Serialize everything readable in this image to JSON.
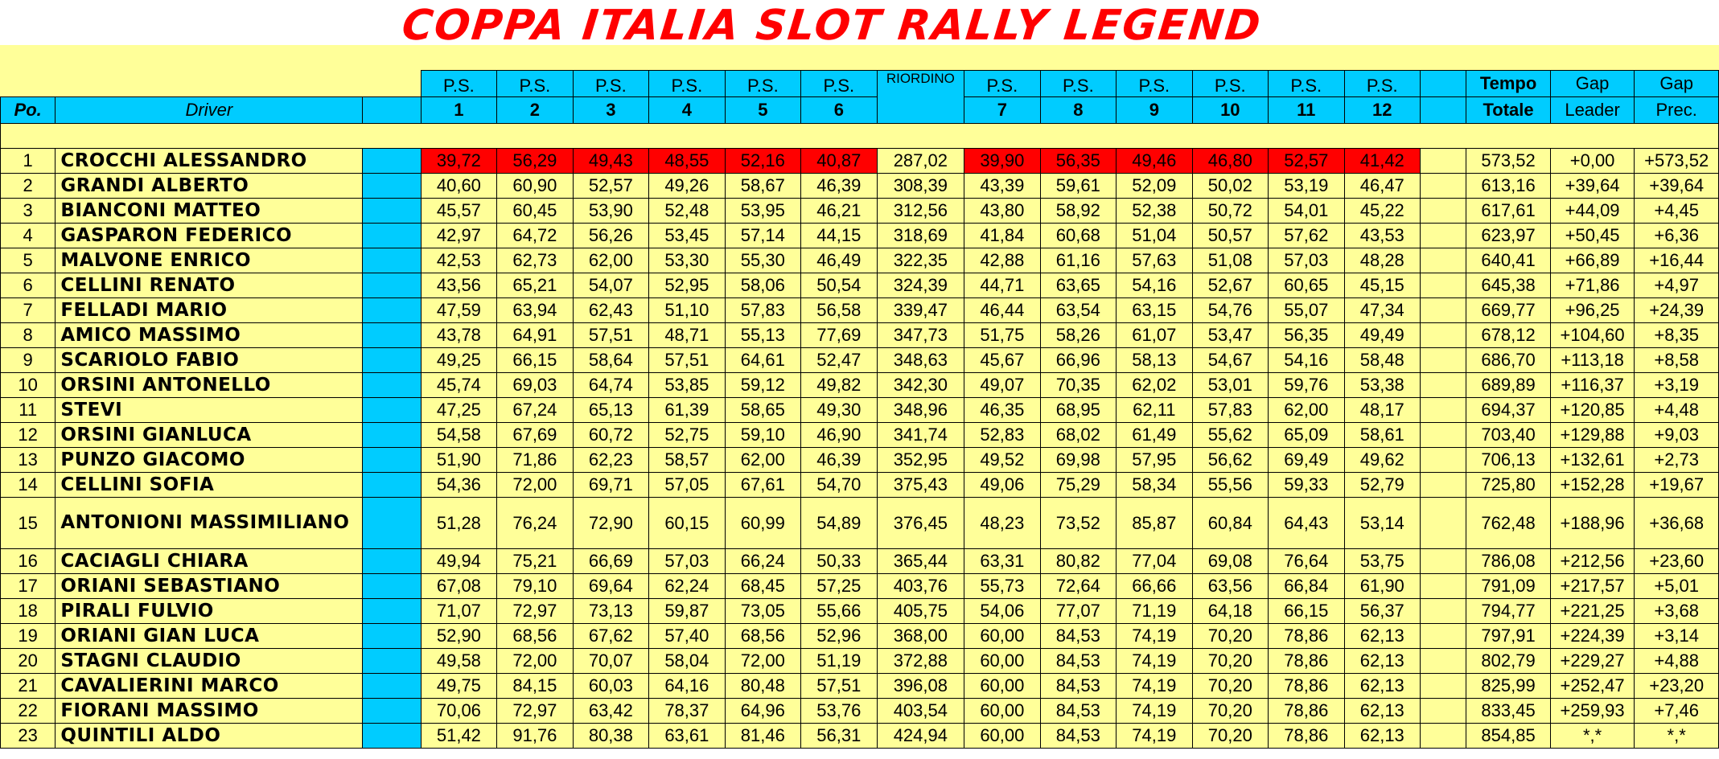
{
  "title": "COPPA ITALIA SLOT RALLY LEGEND",
  "colors": {
    "header_cyan": "#00ccff",
    "table_bg": "#ffff99",
    "best_red": "#ff0000",
    "title_red": "#ff0000"
  },
  "header": {
    "pos_label": "Po.",
    "driver_label": "Driver",
    "stages": [
      {
        "top": "P.S.",
        "num": "1"
      },
      {
        "top": "P.S.",
        "num": "2"
      },
      {
        "top": "P.S.",
        "num": "3"
      },
      {
        "top": "P.S.",
        "num": "4"
      },
      {
        "top": "P.S.",
        "num": "5"
      },
      {
        "top": "P.S.",
        "num": "6"
      },
      {
        "top": "RIORDINO",
        "num": ""
      },
      {
        "top": "P.S.",
        "num": "7"
      },
      {
        "top": "P.S.",
        "num": "8"
      },
      {
        "top": "P.S.",
        "num": "9"
      },
      {
        "top": "P.S.",
        "num": "10"
      },
      {
        "top": "P.S.",
        "num": "11"
      },
      {
        "top": "P.S.",
        "num": "12"
      }
    ],
    "tempo_top": "Tempo",
    "tempo_bottom": "Totale",
    "gap_leader_top": "Gap",
    "gap_leader_bottom": "Leader",
    "gap_prec_top": "Gap",
    "gap_prec_bottom": "Prec."
  },
  "rows": [
    {
      "pos": "1",
      "driver": "CROCCHI ALESSANDRO",
      "times": [
        "39,72",
        "56,29",
        "49,43",
        "48,55",
        "52,16",
        "40,87",
        "287,02",
        "39,90",
        "56,35",
        "49,46",
        "46,80",
        "52,57",
        "41,42"
      ],
      "total": "573,52",
      "gap_leader": "+0,00",
      "gap_prec": "+573,52"
    },
    {
      "pos": "2",
      "driver": "GRANDI ALBERTO",
      "times": [
        "40,60",
        "60,90",
        "52,57",
        "49,26",
        "58,67",
        "46,39",
        "308,39",
        "43,39",
        "59,61",
        "52,09",
        "50,02",
        "53,19",
        "46,47"
      ],
      "total": "613,16",
      "gap_leader": "+39,64",
      "gap_prec": "+39,64"
    },
    {
      "pos": "3",
      "driver": "BIANCONI MATTEO",
      "times": [
        "45,57",
        "60,45",
        "53,90",
        "52,48",
        "53,95",
        "46,21",
        "312,56",
        "43,80",
        "58,92",
        "52,38",
        "50,72",
        "54,01",
        "45,22"
      ],
      "total": "617,61",
      "gap_leader": "+44,09",
      "gap_prec": "+4,45"
    },
    {
      "pos": "4",
      "driver": "GASPARON FEDERICO",
      "times": [
        "42,97",
        "64,72",
        "56,26",
        "53,45",
        "57,14",
        "44,15",
        "318,69",
        "41,84",
        "60,68",
        "51,04",
        "50,57",
        "57,62",
        "43,53"
      ],
      "total": "623,97",
      "gap_leader": "+50,45",
      "gap_prec": "+6,36"
    },
    {
      "pos": "5",
      "driver": "MALVONE ENRICO",
      "times": [
        "42,53",
        "62,73",
        "62,00",
        "53,30",
        "55,30",
        "46,49",
        "322,35",
        "42,88",
        "61,16",
        "57,63",
        "51,08",
        "57,03",
        "48,28"
      ],
      "total": "640,41",
      "gap_leader": "+66,89",
      "gap_prec": "+16,44"
    },
    {
      "pos": "6",
      "driver": "CELLINI RENATO",
      "times": [
        "43,56",
        "65,21",
        "54,07",
        "52,95",
        "58,06",
        "50,54",
        "324,39",
        "44,71",
        "63,65",
        "54,16",
        "52,67",
        "60,65",
        "45,15"
      ],
      "total": "645,38",
      "gap_leader": "+71,86",
      "gap_prec": "+4,97"
    },
    {
      "pos": "7",
      "driver": "FELLADI MARIO",
      "times": [
        "47,59",
        "63,94",
        "62,43",
        "51,10",
        "57,83",
        "56,58",
        "339,47",
        "46,44",
        "63,54",
        "63,15",
        "54,76",
        "55,07",
        "47,34"
      ],
      "total": "669,77",
      "gap_leader": "+96,25",
      "gap_prec": "+24,39"
    },
    {
      "pos": "8",
      "driver": "AMICO MASSIMO",
      "times": [
        "43,78",
        "64,91",
        "57,51",
        "48,71",
        "55,13",
        "77,69",
        "347,73",
        "51,75",
        "58,26",
        "61,07",
        "53,47",
        "56,35",
        "49,49"
      ],
      "total": "678,12",
      "gap_leader": "+104,60",
      "gap_prec": "+8,35"
    },
    {
      "pos": "9",
      "driver": "SCARIOLO FABIO",
      "times": [
        "49,25",
        "66,15",
        "58,64",
        "57,51",
        "64,61",
        "52,47",
        "348,63",
        "45,67",
        "66,96",
        "58,13",
        "54,67",
        "54,16",
        "58,48"
      ],
      "total": "686,70",
      "gap_leader": "+113,18",
      "gap_prec": "+8,58"
    },
    {
      "pos": "10",
      "driver": "ORSINI ANTONELLO",
      "times": [
        "45,74",
        "69,03",
        "64,74",
        "53,85",
        "59,12",
        "49,82",
        "342,30",
        "49,07",
        "70,35",
        "62,02",
        "53,01",
        "59,76",
        "53,38"
      ],
      "total": "689,89",
      "gap_leader": "+116,37",
      "gap_prec": "+3,19"
    },
    {
      "pos": "11",
      "driver": "STEVI",
      "times": [
        "47,25",
        "67,24",
        "65,13",
        "61,39",
        "58,65",
        "49,30",
        "348,96",
        "46,35",
        "68,95",
        "62,11",
        "57,83",
        "62,00",
        "48,17"
      ],
      "total": "694,37",
      "gap_leader": "+120,85",
      "gap_prec": "+4,48"
    },
    {
      "pos": "12",
      "driver": "ORSINI GIANLUCA",
      "times": [
        "54,58",
        "67,69",
        "60,72",
        "52,75",
        "59,10",
        "46,90",
        "341,74",
        "52,83",
        "68,02",
        "61,49",
        "55,62",
        "65,09",
        "58,61"
      ],
      "total": "703,40",
      "gap_leader": "+129,88",
      "gap_prec": "+9,03"
    },
    {
      "pos": "13",
      "driver": "PUNZO GIACOMO",
      "times": [
        "51,90",
        "71,86",
        "62,23",
        "58,57",
        "62,00",
        "46,39",
        "352,95",
        "49,52",
        "69,98",
        "57,95",
        "56,62",
        "69,49",
        "49,62"
      ],
      "total": "706,13",
      "gap_leader": "+132,61",
      "gap_prec": "+2,73"
    },
    {
      "pos": "14",
      "driver": "CELLINI SOFIA",
      "times": [
        "54,36",
        "72,00",
        "69,71",
        "57,05",
        "67,61",
        "54,70",
        "375,43",
        "49,06",
        "75,29",
        "58,34",
        "55,56",
        "59,33",
        "52,79"
      ],
      "total": "725,80",
      "gap_leader": "+152,28",
      "gap_prec": "+19,67"
    },
    {
      "pos": "15",
      "driver": "ANTONIONI MASSIMILIANO",
      "times": [
        "51,28",
        "76,24",
        "72,90",
        "60,15",
        "60,99",
        "54,89",
        "376,45",
        "48,23",
        "73,52",
        "85,87",
        "60,84",
        "64,43",
        "53,14"
      ],
      "total": "762,48",
      "gap_leader": "+188,96",
      "gap_prec": "+36,68"
    },
    {
      "pos": "16",
      "driver": "CACIAGLI CHIARA",
      "times": [
        "49,94",
        "75,21",
        "66,69",
        "57,03",
        "66,24",
        "50,33",
        "365,44",
        "63,31",
        "80,82",
        "77,04",
        "69,08",
        "76,64",
        "53,75"
      ],
      "total": "786,08",
      "gap_leader": "+212,56",
      "gap_prec": "+23,60"
    },
    {
      "pos": "17",
      "driver": "ORIANI SEBASTIANO",
      "times": [
        "67,08",
        "79,10",
        "69,64",
        "62,24",
        "68,45",
        "57,25",
        "403,76",
        "55,73",
        "72,64",
        "66,66",
        "63,56",
        "66,84",
        "61,90"
      ],
      "total": "791,09",
      "gap_leader": "+217,57",
      "gap_prec": "+5,01"
    },
    {
      "pos": "18",
      "driver": "PIRALI FULVIO",
      "times": [
        "71,07",
        "72,97",
        "73,13",
        "59,87",
        "73,05",
        "55,66",
        "405,75",
        "54,06",
        "77,07",
        "71,19",
        "64,18",
        "66,15",
        "56,37"
      ],
      "total": "794,77",
      "gap_leader": "+221,25",
      "gap_prec": "+3,68"
    },
    {
      "pos": "19",
      "driver": "ORIANI GIAN LUCA",
      "times": [
        "52,90",
        "68,56",
        "67,62",
        "57,40",
        "68,56",
        "52,96",
        "368,00",
        "60,00",
        "84,53",
        "74,19",
        "70,20",
        "78,86",
        "62,13"
      ],
      "total": "797,91",
      "gap_leader": "+224,39",
      "gap_prec": "+3,14"
    },
    {
      "pos": "20",
      "driver": "STAGNI CLAUDIO",
      "times": [
        "49,58",
        "72,00",
        "70,07",
        "58,04",
        "72,00",
        "51,19",
        "372,88",
        "60,00",
        "84,53",
        "74,19",
        "70,20",
        "78,86",
        "62,13"
      ],
      "total": "802,79",
      "gap_leader": "+229,27",
      "gap_prec": "+4,88"
    },
    {
      "pos": "21",
      "driver": "CAVALIERINI MARCO",
      "times": [
        "49,75",
        "84,15",
        "60,03",
        "64,16",
        "80,48",
        "57,51",
        "396,08",
        "60,00",
        "84,53",
        "74,19",
        "70,20",
        "78,86",
        "62,13"
      ],
      "total": "825,99",
      "gap_leader": "+252,47",
      "gap_prec": "+23,20"
    },
    {
      "pos": "22",
      "driver": "FIORANI MASSIMO",
      "times": [
        "70,06",
        "72,97",
        "63,42",
        "78,37",
        "64,96",
        "53,76",
        "403,54",
        "60,00",
        "84,53",
        "74,19",
        "70,20",
        "78,86",
        "62,13"
      ],
      "total": "833,45",
      "gap_leader": "+259,93",
      "gap_prec": "+7,46"
    },
    {
      "pos": "23",
      "driver": "QUINTILI ALDO",
      "times": [
        "51,42",
        "91,76",
        "80,38",
        "63,61",
        "81,46",
        "56,31",
        "424,94",
        "60,00",
        "84,53",
        "74,19",
        "70,20",
        "78,86",
        "62,13"
      ],
      "total": "854,85",
      "gap_leader": "*,*",
      "gap_prec": "*,*"
    }
  ]
}
